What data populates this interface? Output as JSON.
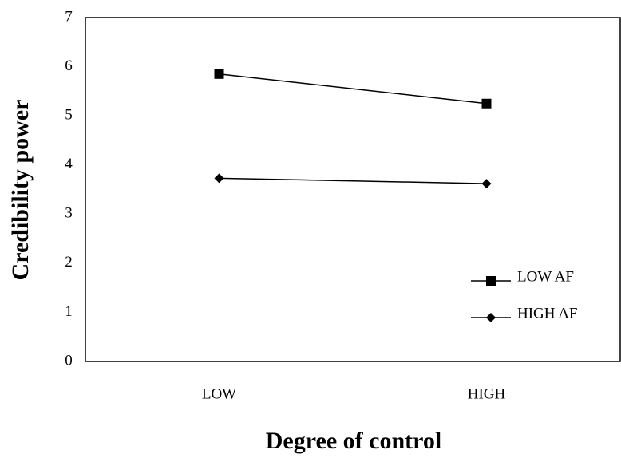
{
  "chart_data": {
    "type": "line",
    "x_label": "Degree of control",
    "y_label": "Credibility power",
    "categories": [
      "LOW",
      "HIGH"
    ],
    "series": [
      {
        "name": "LOW AF",
        "color": "#000000",
        "marker": "square",
        "values": [
          5.85,
          5.25
        ]
      },
      {
        "name": "HIGH AF",
        "color": "#000000",
        "marker": "diamond",
        "values": [
          3.73,
          3.62
        ]
      }
    ],
    "ylim": [
      0,
      7
    ],
    "yticks": [
      0,
      1,
      2,
      3,
      4,
      5,
      6,
      7
    ],
    "grid": false,
    "legend": "right"
  }
}
